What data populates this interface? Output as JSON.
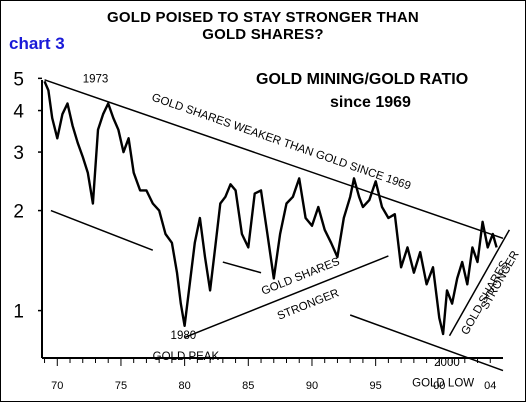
{
  "header": {
    "title_line1": "GOLD POISED TO STAY STRONGER THAN",
    "title_line2": "GOLD SHARES?",
    "chart_tag": "chart 3",
    "chart_tag_color": "#1a1ad8"
  },
  "chart_data": {
    "type": "line",
    "title": "GOLD MINING/GOLD RATIO",
    "subtitle": "since  1969",
    "xlabel": "",
    "ylabel": "",
    "y_scale": "log",
    "x_ticks": [
      "70",
      "75",
      "80",
      "85",
      "90",
      "95",
      "00",
      "04"
    ],
    "x_tick_years": [
      1970,
      1975,
      1980,
      1985,
      1990,
      1995,
      2000,
      2004
    ],
    "y_ticks": [
      1,
      2,
      3,
      4,
      5
    ],
    "xlim": [
      1968.8,
      2005
    ],
    "ylim": [
      0.72,
      5.6
    ],
    "grid": false,
    "line_color": "#000000",
    "series": [
      {
        "x": [
          1969.0,
          1969.3,
          1969.6,
          1970.0,
          1970.4,
          1970.8,
          1971.2,
          1971.6,
          1972.0,
          1972.4,
          1972.8,
          1973.2,
          1973.6,
          1974.0,
          1974.4,
          1974.8,
          1975.2,
          1975.6,
          1976.0,
          1976.5,
          1977.0,
          1977.5,
          1978.0,
          1978.5,
          1979.0,
          1979.4,
          1979.7,
          1980.0,
          1980.4,
          1980.8,
          1981.2,
          1981.6,
          1982.0,
          1982.4,
          1982.8,
          1983.2,
          1983.6,
          1984.0,
          1984.5,
          1985.0,
          1985.5,
          1986.0,
          1986.5,
          1987.0,
          1987.5,
          1988.0,
          1988.5,
          1989.0,
          1989.5,
          1990.0,
          1990.5,
          1991.0,
          1991.5,
          1992.0,
          1992.5,
          1993.0,
          1993.3,
          1993.7,
          1994.0,
          1994.5,
          1995.0,
          1995.5,
          1996.0,
          1996.5,
          1997.0,
          1997.5,
          1998.0,
          1998.5,
          1999.0,
          1999.5,
          2000.0,
          2000.3,
          2000.6,
          2001.0,
          2001.4,
          2001.8,
          2002.2,
          2002.6,
          2003.0,
          2003.4,
          2003.8,
          2004.2,
          2004.5
        ],
        "y": [
          4.9,
          4.6,
          3.8,
          3.3,
          3.9,
          4.2,
          3.6,
          3.2,
          2.9,
          2.6,
          2.1,
          3.5,
          3.9,
          4.2,
          3.8,
          3.5,
          3.0,
          3.3,
          2.6,
          2.3,
          2.3,
          2.1,
          2.0,
          1.7,
          1.6,
          1.3,
          1.05,
          0.9,
          1.2,
          1.6,
          1.9,
          1.45,
          1.15,
          1.55,
          2.1,
          2.2,
          2.4,
          2.3,
          1.7,
          1.55,
          2.25,
          2.3,
          1.7,
          1.25,
          1.7,
          2.1,
          2.2,
          2.5,
          1.9,
          1.8,
          2.05,
          1.75,
          1.6,
          1.45,
          1.9,
          2.2,
          2.5,
          2.2,
          2.05,
          2.15,
          2.45,
          2.05,
          1.9,
          1.95,
          1.35,
          1.55,
          1.3,
          1.5,
          1.2,
          1.35,
          0.95,
          0.85,
          1.15,
          1.05,
          1.25,
          1.4,
          1.2,
          1.55,
          1.4,
          1.85,
          1.55,
          1.7,
          1.55
        ]
      }
    ],
    "annotations": [
      {
        "text": "1973",
        "x": 1973.0,
        "y": 4.85
      },
      {
        "text": "1980",
        "x": 1979.9,
        "y": 0.82
      },
      {
        "text": "GOLD PEAK",
        "x": 1980.1,
        "y": 0.71
      },
      {
        "text": "2000",
        "x": 2000.6,
        "y": 0.68
      },
      {
        "text": "GOLD LOW",
        "x": 2000.3,
        "y": 0.59
      },
      {
        "text": "GOLD SHARES WEAKER THAN GOLD SINCE 1969",
        "x": 1987.5,
        "y": 3.15,
        "rotate_with": "trend_main"
      },
      {
        "text": "GOLD SHARES",
        "x": 1989.2,
        "y": 1.24,
        "rotate_with": "trend_rise"
      },
      {
        "text": "STRONGER",
        "x": 1989.8,
        "y": 1.02,
        "rotate_with": "trend_rise"
      },
      {
        "text": "GOLD SHARES",
        "x": 2003.8,
        "y": 1.08,
        "rotate_with": "trend_steep"
      },
      {
        "text": "STRONGER",
        "x": 2005.0,
        "y": 1.22,
        "rotate_with": "trend_steep"
      }
    ],
    "trend_lines": [
      {
        "id": "trend_main",
        "x": [
          1969.0,
          2005.0
        ],
        "y": [
          4.95,
          1.65
        ]
      },
      {
        "id": "trend_low1",
        "x": [
          1969.5,
          1977.5
        ],
        "y": [
          2.0,
          1.52
        ]
      },
      {
        "id": "trend_rise",
        "x": [
          1980.0,
          1996.0
        ],
        "y": [
          0.83,
          1.46
        ]
      },
      {
        "id": "trend_low2",
        "x": [
          1983.0,
          1986.0
        ],
        "y": [
          1.4,
          1.3
        ]
      },
      {
        "id": "trend_low3",
        "x": [
          1993.0,
          2005.0
        ],
        "y": [
          0.97,
          0.66
        ]
      },
      {
        "id": "trend_steep",
        "x": [
          2000.8,
          2005.5
        ],
        "y": [
          0.84,
          1.75
        ]
      }
    ]
  }
}
